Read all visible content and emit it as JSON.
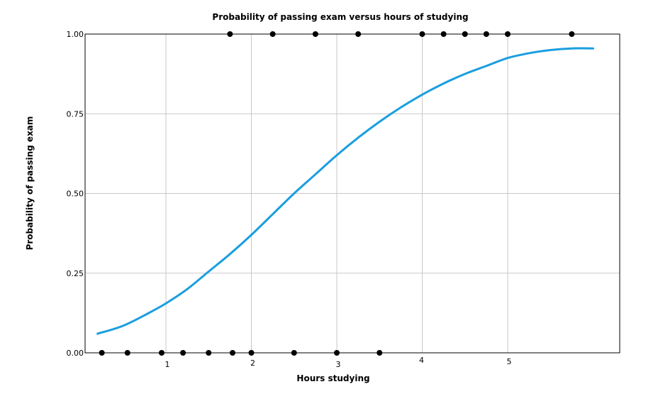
{
  "chart_data": {
    "type": "scatter",
    "title": "Probability of passing exam versus hours of studying",
    "xlabel": "Hours studying",
    "ylabel": "Probability of passing exam",
    "xlim": [
      0.0,
      6.2
    ],
    "ylim": [
      0.0,
      1.0
    ],
    "x_ticks": [
      1,
      2,
      3,
      4,
      5
    ],
    "x_tick_labels": [
      "1",
      "2",
      "3",
      "4",
      "5"
    ],
    "y_ticks": [
      0.0,
      0.25,
      0.5,
      0.75,
      1.0
    ],
    "y_tick_labels": [
      "0.00",
      "0.25",
      "0.50",
      "0.75",
      "1.00"
    ],
    "grid": true,
    "legend": "none",
    "series": [
      {
        "kind": "scatter",
        "color": "#000000",
        "points": [
          {
            "x": 0.25,
            "y": 0
          },
          {
            "x": 0.55,
            "y": 0
          },
          {
            "x": 0.95,
            "y": 0
          },
          {
            "x": 1.2,
            "y": 0
          },
          {
            "x": 1.5,
            "y": 0
          },
          {
            "x": 1.78,
            "y": 0
          },
          {
            "x": 2.0,
            "y": 0
          },
          {
            "x": 2.5,
            "y": 0
          },
          {
            "x": 3.0,
            "y": 0
          },
          {
            "x": 3.5,
            "y": 0
          },
          {
            "x": 1.75,
            "y": 1
          },
          {
            "x": 2.25,
            "y": 1
          },
          {
            "x": 2.75,
            "y": 1
          },
          {
            "x": 3.25,
            "y": 1
          },
          {
            "x": 4.0,
            "y": 1
          },
          {
            "x": 4.25,
            "y": 1
          },
          {
            "x": 4.5,
            "y": 1
          },
          {
            "x": 4.75,
            "y": 1
          },
          {
            "x": 5.0,
            "y": 1
          },
          {
            "x": 5.75,
            "y": 1
          }
        ]
      },
      {
        "kind": "line",
        "color": "#1a9ee0",
        "points": [
          {
            "x": 0.2,
            "y": 0.06
          },
          {
            "x": 0.5,
            "y": 0.085
          },
          {
            "x": 0.8,
            "y": 0.125
          },
          {
            "x": 1.0,
            "y": 0.155
          },
          {
            "x": 1.25,
            "y": 0.2
          },
          {
            "x": 1.5,
            "y": 0.255
          },
          {
            "x": 1.75,
            "y": 0.31
          },
          {
            "x": 2.0,
            "y": 0.37
          },
          {
            "x": 2.25,
            "y": 0.435
          },
          {
            "x": 2.5,
            "y": 0.5
          },
          {
            "x": 2.75,
            "y": 0.56
          },
          {
            "x": 3.0,
            "y": 0.62
          },
          {
            "x": 3.25,
            "y": 0.675
          },
          {
            "x": 3.5,
            "y": 0.725
          },
          {
            "x": 3.75,
            "y": 0.77
          },
          {
            "x": 4.0,
            "y": 0.81
          },
          {
            "x": 4.25,
            "y": 0.845
          },
          {
            "x": 4.5,
            "y": 0.875
          },
          {
            "x": 4.75,
            "y": 0.9
          },
          {
            "x": 5.0,
            "y": 0.925
          },
          {
            "x": 5.25,
            "y": 0.94
          },
          {
            "x": 5.5,
            "y": 0.95
          },
          {
            "x": 5.75,
            "y": 0.955
          },
          {
            "x": 6.0,
            "y": 0.955
          }
        ]
      }
    ]
  }
}
